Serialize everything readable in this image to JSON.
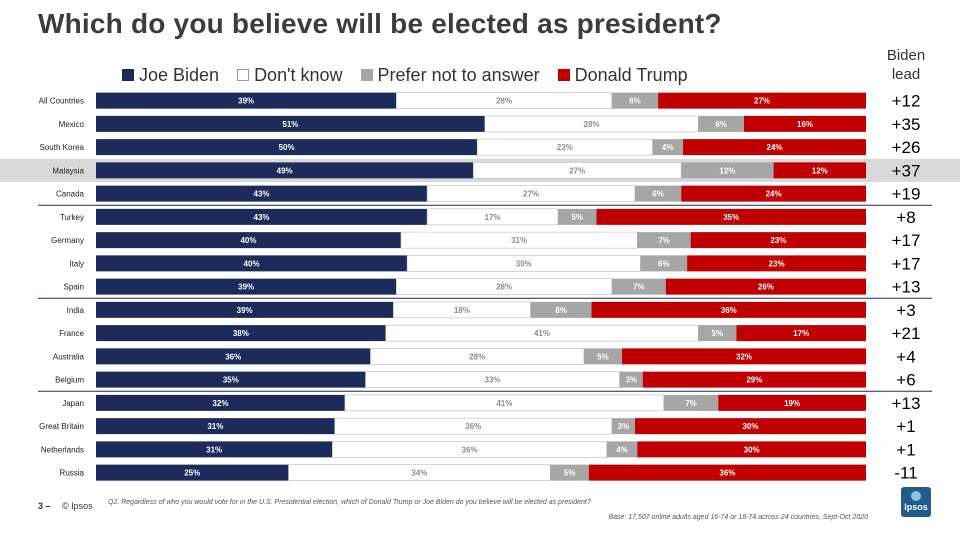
{
  "title": "Which do you believe will be elected as president?",
  "lead_header": [
    "Biden",
    "lead"
  ],
  "colors": {
    "biden": "#1c2b5a",
    "dont_know": "#ffffff",
    "prefer_not": "#a6a6a6",
    "trump": "#c00000",
    "highlight_row": "#d9d9d9",
    "divider": "#1c2b5a"
  },
  "chart_data": {
    "type": "bar",
    "orientation": "horizontal",
    "stacked": true,
    "normalized": true,
    "categories": [
      "All Countries",
      "Mexico",
      "South Korea",
      "Malaysia",
      "Canada",
      "Turkey",
      "Germany",
      "Italy",
      "Spain",
      "India",
      "France",
      "Australia",
      "Belgium",
      "Japan",
      "Great Britain",
      "Netherlands",
      "Russia"
    ],
    "series": [
      {
        "name": "Joe Biden",
        "key": "biden",
        "values": [
          39,
          51,
          50,
          49,
          43,
          43,
          40,
          40,
          39,
          39,
          38,
          36,
          35,
          32,
          31,
          31,
          25
        ]
      },
      {
        "name": "Don't know",
        "key": "dont_know",
        "values": [
          28,
          28,
          23,
          27,
          27,
          17,
          31,
          30,
          28,
          18,
          41,
          28,
          33,
          41,
          36,
          36,
          34
        ]
      },
      {
        "name": "Prefer not to answer",
        "key": "prefer_not",
        "values": [
          6,
          6,
          4,
          12,
          6,
          5,
          7,
          6,
          7,
          8,
          5,
          5,
          3,
          7,
          3,
          4,
          5
        ]
      },
      {
        "name": "Donald Trump",
        "key": "trump",
        "values": [
          27,
          16,
          24,
          12,
          24,
          35,
          23,
          23,
          26,
          36,
          17,
          32,
          29,
          19,
          30,
          30,
          36
        ]
      }
    ],
    "data_labels": [
      [
        "39%",
        "28%",
        "6%",
        "27%"
      ],
      [
        "51%",
        "28%",
        "6%",
        "16%"
      ],
      [
        "50%",
        "23%",
        "4%",
        "24%"
      ],
      [
        "49%",
        "27%",
        "12%",
        "12%"
      ],
      [
        "43%",
        "27%",
        "6%",
        "24%"
      ],
      [
        "43%",
        "17%",
        "5%",
        "35%"
      ],
      [
        "40%",
        "31%",
        "7%",
        "23%"
      ],
      [
        "40%",
        "30%",
        "6%",
        "23%"
      ],
      [
        "39%",
        "28%",
        "7%",
        "26%"
      ],
      [
        "39%",
        "18%",
        "8%",
        "36%"
      ],
      [
        "38%",
        "41%",
        "5%",
        "17%"
      ],
      [
        "36%",
        "28%",
        "5%",
        "32%"
      ],
      [
        "35%",
        "33%",
        "3%",
        "29%"
      ],
      [
        "32%",
        "41%",
        "7%",
        "19%"
      ],
      [
        "31%",
        "36%",
        "3%",
        "30%"
      ],
      [
        "31%",
        "36%",
        "4%",
        "30%"
      ],
      [
        "25%",
        "34%",
        "5%",
        "36%"
      ]
    ],
    "biden_lead": [
      "+12",
      "+35",
      "+26",
      "+37",
      "+19",
      "+8",
      "+17",
      "+17",
      "+13",
      "+3",
      "+21",
      "+4",
      "+6",
      "+13",
      "+1",
      "+1",
      "-11"
    ],
    "highlighted_category": "Malaysia",
    "group_dividers_after": [
      "Canada",
      "Spain",
      "Belgium"
    ],
    "legend_position": "top"
  },
  "footer": {
    "page_number": "3 –",
    "brand": "© Ipsos",
    "question": "Q2. Regardless of who you would vote for in the U.S. Presidential election, which of Donald Trump or Joe Biden do you believe will be elected as president?",
    "base": "Base: 17,507 online adults aged 16-74 or 18-74 across 24 countries, Sept-Oct 2020",
    "logo_text": "Ipsos"
  }
}
